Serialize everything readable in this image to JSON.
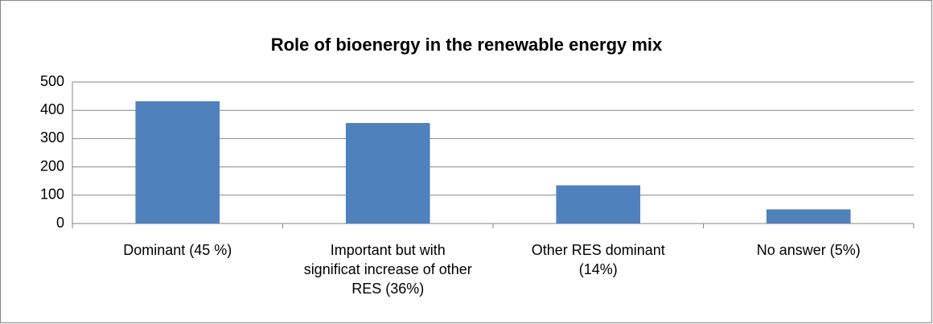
{
  "chart_data": {
    "type": "bar",
    "title": "Role of bioenergy in the renewable energy mix",
    "categories": [
      "Dominant (45 %)",
      "Important but with significat increase of other RES (36%)",
      "Other RES dominant (14%)",
      "No answer (5%)"
    ],
    "values": [
      432,
      355,
      135,
      50
    ],
    "color": "#4f81bd",
    "ylim": [
      0,
      500
    ],
    "yticks": [
      0,
      100,
      200,
      300,
      400,
      500
    ],
    "grid": true
  }
}
